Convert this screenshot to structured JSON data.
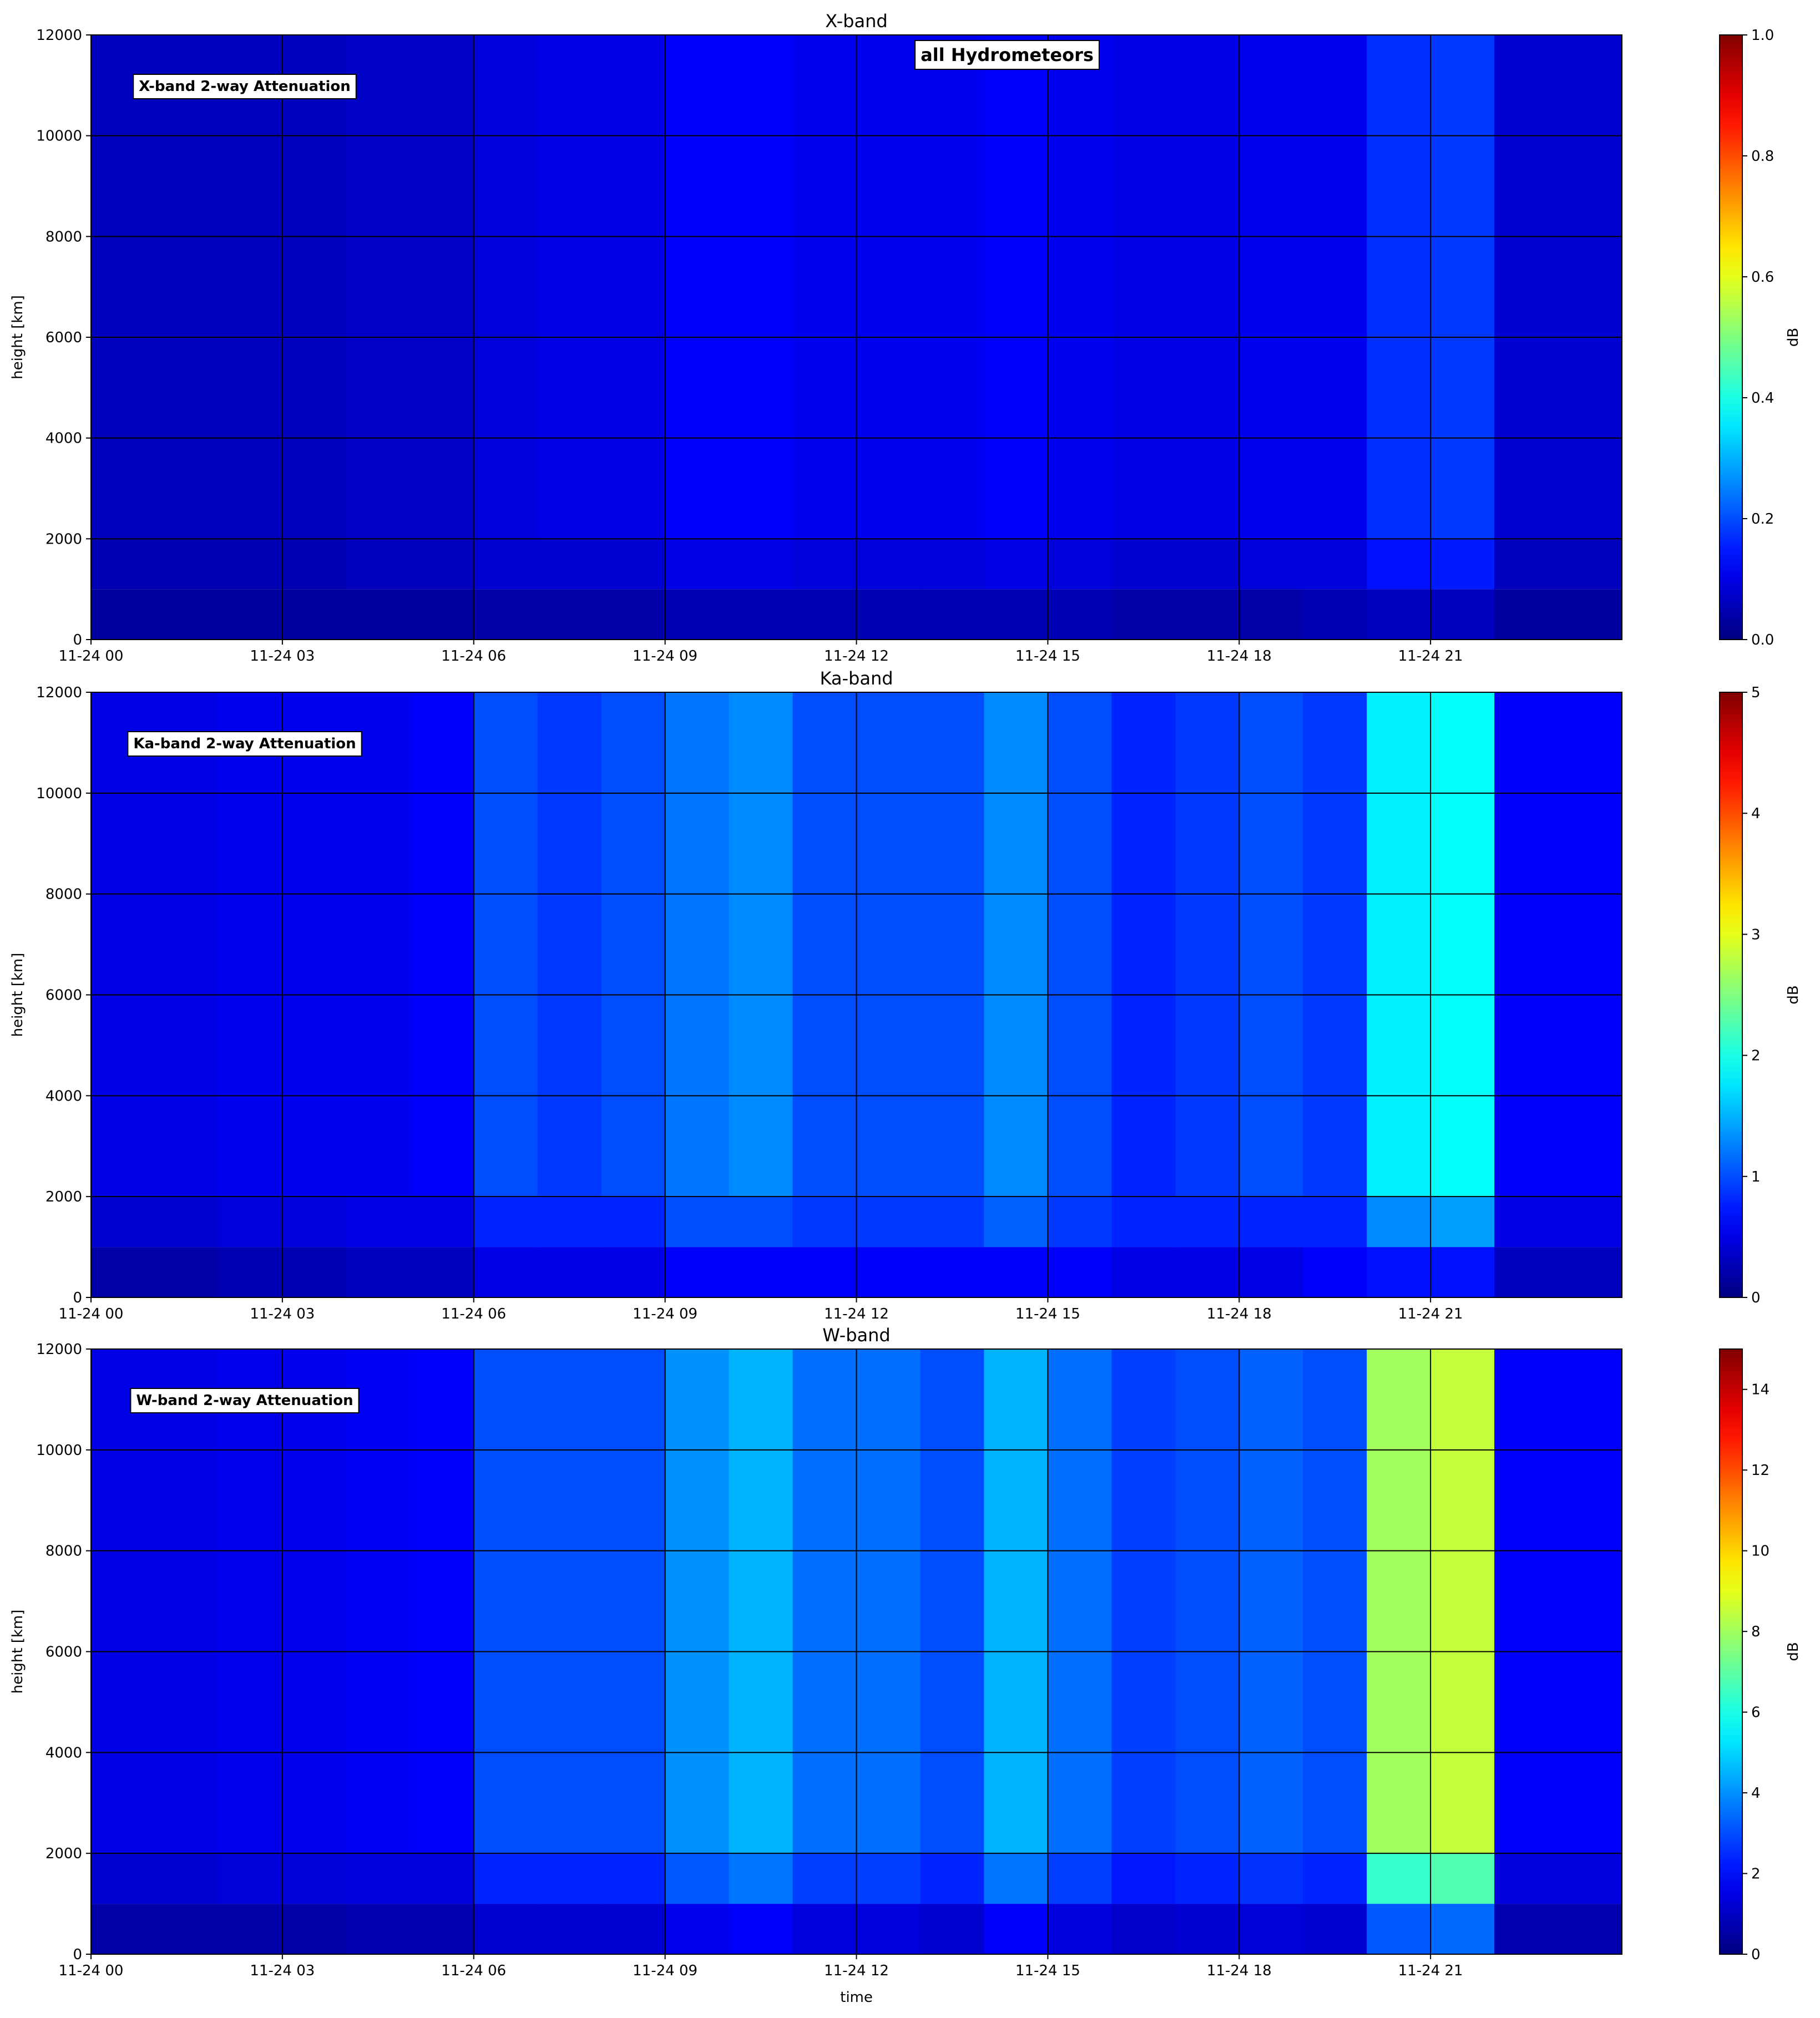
{
  "chart_data": [
    {
      "type": "heatmap",
      "title": "X-band",
      "annotations": [
        "X-band 2-way Attenuation",
        "all Hydrometeors"
      ],
      "ylabel": "height [km]",
      "colorbar_label": "dB",
      "colormap": "jet",
      "grid": true,
      "xlim": [
        0,
        24
      ],
      "xticks": [
        {
          "value": 0,
          "label": "11-24 00"
        },
        {
          "value": 3,
          "label": "11-24 03"
        },
        {
          "value": 6,
          "label": "11-24 06"
        },
        {
          "value": 9,
          "label": "11-24 09"
        },
        {
          "value": 12,
          "label": "11-24 12"
        },
        {
          "value": 15,
          "label": "11-24 15"
        },
        {
          "value": 18,
          "label": "11-24 18"
        },
        {
          "value": 21,
          "label": "11-24 21"
        }
      ],
      "ylim": [
        0,
        12000
      ],
      "yticks": [
        0,
        2000,
        4000,
        6000,
        8000,
        10000,
        12000
      ],
      "clim": [
        0,
        1
      ],
      "cticks": [
        0.0,
        0.2,
        0.4,
        0.6,
        0.8,
        1.0
      ],
      "xbins": [
        0,
        1,
        2,
        3,
        4,
        5,
        6,
        7,
        8,
        9,
        10,
        11,
        12,
        13,
        14,
        15,
        16,
        17,
        18,
        19,
        20,
        21,
        22,
        23,
        24
      ],
      "ybins": [
        0,
        1000,
        2000,
        12000
      ],
      "z": [
        [
          0.03,
          0.03,
          0.03,
          0.03,
          0.03,
          0.03,
          0.04,
          0.04,
          0.04,
          0.05,
          0.05,
          0.05,
          0.05,
          0.05,
          0.05,
          0.05,
          0.04,
          0.04,
          0.04,
          0.05,
          0.06,
          0.06,
          0.03,
          0.03
        ],
        [
          0.05,
          0.05,
          0.05,
          0.05,
          0.06,
          0.06,
          0.08,
          0.08,
          0.08,
          0.1,
          0.1,
          0.09,
          0.09,
          0.09,
          0.1,
          0.09,
          0.08,
          0.08,
          0.09,
          0.09,
          0.14,
          0.15,
          0.06,
          0.06
        ],
        [
          0.06,
          0.06,
          0.06,
          0.06,
          0.07,
          0.07,
          0.09,
          0.1,
          0.1,
          0.12,
          0.12,
          0.11,
          0.11,
          0.11,
          0.12,
          0.11,
          0.1,
          0.1,
          0.11,
          0.11,
          0.17,
          0.18,
          0.08,
          0.08
        ]
      ]
    },
    {
      "type": "heatmap",
      "title": "Ka-band",
      "annotations": [
        "Ka-band 2-way Attenuation"
      ],
      "ylabel": "height [km]",
      "colorbar_label": "dB",
      "colormap": "jet",
      "grid": true,
      "xlim": [
        0,
        24
      ],
      "xticks": [
        {
          "value": 0,
          "label": "11-24 00"
        },
        {
          "value": 3,
          "label": "11-24 03"
        },
        {
          "value": 6,
          "label": "11-24 06"
        },
        {
          "value": 9,
          "label": "11-24 09"
        },
        {
          "value": 12,
          "label": "11-24 12"
        },
        {
          "value": 15,
          "label": "11-24 15"
        },
        {
          "value": 18,
          "label": "11-24 18"
        },
        {
          "value": 21,
          "label": "11-24 21"
        }
      ],
      "ylim": [
        0,
        12000
      ],
      "yticks": [
        0,
        2000,
        4000,
        6000,
        8000,
        10000,
        12000
      ],
      "clim": [
        0,
        5
      ],
      "cticks": [
        0,
        1,
        2,
        3,
        4,
        5
      ],
      "xbins": [
        0,
        1,
        2,
        3,
        4,
        5,
        6,
        7,
        8,
        9,
        10,
        11,
        12,
        13,
        14,
        15,
        16,
        17,
        18,
        19,
        20,
        21,
        22,
        23,
        24
      ],
      "ybins": [
        0,
        1000,
        2000,
        12000
      ],
      "z": [
        [
          0.2,
          0.2,
          0.25,
          0.25,
          0.3,
          0.3,
          0.5,
          0.5,
          0.5,
          0.6,
          0.6,
          0.6,
          0.6,
          0.6,
          0.6,
          0.6,
          0.5,
          0.5,
          0.5,
          0.6,
          0.7,
          0.7,
          0.3,
          0.3
        ],
        [
          0.4,
          0.4,
          0.45,
          0.45,
          0.5,
          0.5,
          0.8,
          0.8,
          0.8,
          1.0,
          1.0,
          0.9,
          0.9,
          0.9,
          1.1,
          0.9,
          0.8,
          0.8,
          0.8,
          0.8,
          1.3,
          1.4,
          0.5,
          0.5
        ],
        [
          0.5,
          0.5,
          0.55,
          0.55,
          0.55,
          0.6,
          1.0,
          0.9,
          1.0,
          1.2,
          1.3,
          1.0,
          1.0,
          1.0,
          1.3,
          1.0,
          0.8,
          0.9,
          1.0,
          0.9,
          1.8,
          1.9,
          0.6,
          0.6
        ]
      ]
    },
    {
      "type": "heatmap",
      "title": "W-band",
      "annotations": [
        "W-band 2-way Attenuation"
      ],
      "ylabel": "height [km]",
      "xlabel": "time",
      "colorbar_label": "dB",
      "colormap": "jet",
      "grid": true,
      "xlim": [
        0,
        24
      ],
      "xticks": [
        {
          "value": 0,
          "label": "11-24 00"
        },
        {
          "value": 3,
          "label": "11-24 03"
        },
        {
          "value": 6,
          "label": "11-24 06"
        },
        {
          "value": 9,
          "label": "11-24 09"
        },
        {
          "value": 12,
          "label": "11-24 12"
        },
        {
          "value": 15,
          "label": "11-24 15"
        },
        {
          "value": 18,
          "label": "11-24 18"
        },
        {
          "value": 21,
          "label": "11-24 21"
        }
      ],
      "ylim": [
        0,
        12000
      ],
      "yticks": [
        0,
        2000,
        4000,
        6000,
        8000,
        10000,
        12000
      ],
      "clim": [
        0,
        15
      ],
      "cticks": [
        0,
        2,
        4,
        6,
        8,
        10,
        12,
        14
      ],
      "xbins": [
        0,
        1,
        2,
        3,
        4,
        5,
        6,
        7,
        8,
        9,
        10,
        11,
        12,
        13,
        14,
        15,
        16,
        17,
        18,
        19,
        20,
        21,
        22,
        23,
        24
      ],
      "ybins": [
        0,
        1000,
        2000,
        12000
      ],
      "z": [
        [
          0.6,
          0.6,
          0.6,
          0.6,
          0.7,
          0.7,
          1.2,
          1.2,
          1.2,
          1.6,
          1.8,
          1.4,
          1.4,
          1.2,
          1.8,
          1.4,
          1.1,
          1.2,
          1.3,
          1.2,
          3.2,
          3.4,
          0.7,
          0.7
        ],
        [
          1.2,
          1.2,
          1.3,
          1.3,
          1.4,
          1.4,
          2.4,
          2.4,
          2.4,
          3.2,
          3.6,
          2.8,
          2.8,
          2.4,
          3.6,
          2.8,
          2.2,
          2.4,
          2.6,
          2.4,
          6.4,
          6.8,
          1.4,
          1.4
        ],
        [
          1.5,
          1.5,
          1.6,
          1.6,
          1.7,
          1.8,
          3.0,
          3.0,
          3.0,
          4.0,
          4.5,
          3.5,
          3.5,
          3.0,
          4.5,
          3.5,
          2.8,
          3.0,
          3.3,
          3.0,
          8.0,
          8.5,
          1.8,
          1.8
        ]
      ]
    }
  ]
}
